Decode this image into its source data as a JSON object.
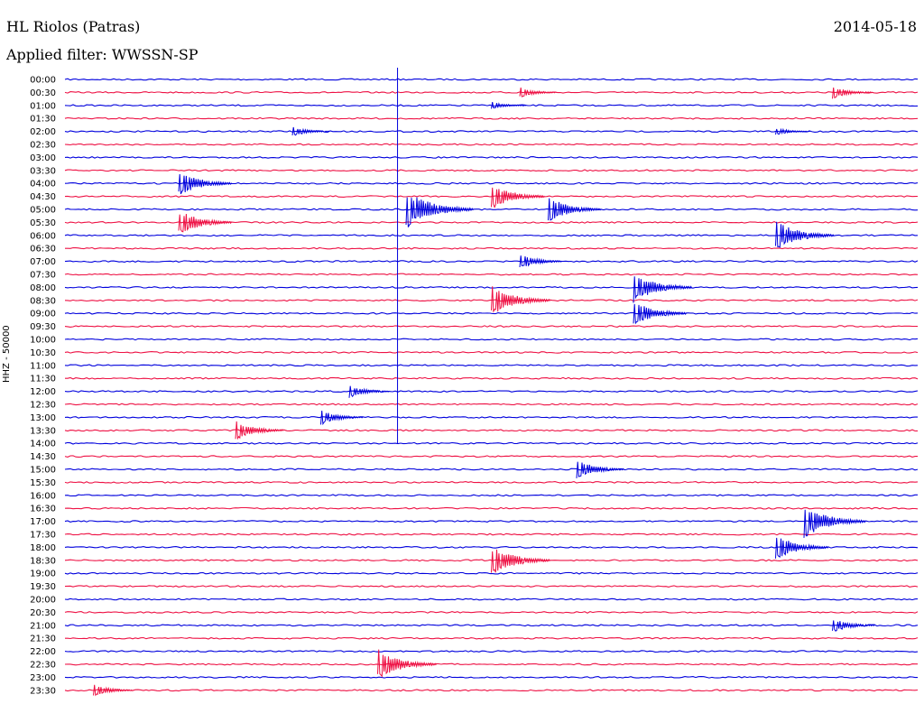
{
  "header": {
    "station": "HL Riolos (Patras)",
    "date": "2014-05-18",
    "filter": "Applied filter: WWSSN-SP"
  },
  "colors": {
    "trace_a": "#0000dd",
    "trace_b": "#ee1144",
    "axis": "#000000"
  },
  "chart_data": {
    "type": "line",
    "title": "HL Riolos (Patras)",
    "subtitle": "Applied filter: WWSSN-SP",
    "date": "2014-05-18",
    "ylabel": "HHZ - 50000",
    "xlabel": "",
    "row_labels": [
      "00:00",
      "00:30",
      "01:00",
      "01:30",
      "02:00",
      "02:30",
      "03:00",
      "03:30",
      "04:00",
      "04:30",
      "05:00",
      "05:30",
      "06:00",
      "06:30",
      "07:00",
      "07:30",
      "08:00",
      "08:30",
      "09:00",
      "09:30",
      "10:00",
      "10:30",
      "11:00",
      "11:30",
      "12:00",
      "12:30",
      "13:00",
      "13:30",
      "14:00",
      "14:30",
      "15:00",
      "15:30",
      "16:00",
      "16:30",
      "17:00",
      "17:30",
      "18:00",
      "18:30",
      "19:00",
      "19:30",
      "20:00",
      "20:30",
      "21:00",
      "21:30",
      "22:00",
      "22:30",
      "23:00",
      "23:30"
    ],
    "row_minutes": 30,
    "series_colors_alternating": [
      "blue",
      "red"
    ],
    "events": [
      {
        "row": "00:30",
        "minute": 16,
        "amplitude": 0.4
      },
      {
        "row": "00:30",
        "minute": 27,
        "amplitude": 0.5
      },
      {
        "row": "01:00",
        "minute": 15,
        "amplitude": 0.3
      },
      {
        "row": "02:00",
        "minute": 8,
        "amplitude": 0.4
      },
      {
        "row": "02:00",
        "minute": 25,
        "amplitude": 0.3
      },
      {
        "row": "04:00",
        "minute": 4,
        "amplitude": 1.0
      },
      {
        "row": "04:30",
        "minute": 15,
        "amplitude": 1.0
      },
      {
        "row": "05:00",
        "minute": 12,
        "amplitude": 1.5
      },
      {
        "row": "05:00",
        "minute": 17,
        "amplitude": 1.0
      },
      {
        "row": "05:30",
        "minute": 4,
        "amplitude": 1.0
      },
      {
        "row": "06:00",
        "minute": 25,
        "amplitude": 1.2
      },
      {
        "row": "07:00",
        "minute": 16,
        "amplitude": 0.6
      },
      {
        "row": "08:00",
        "minute": 20,
        "amplitude": 1.2
      },
      {
        "row": "08:30",
        "minute": 15,
        "amplitude": 1.2
      },
      {
        "row": "09:00",
        "minute": 20,
        "amplitude": 1.0
      },
      {
        "row": "12:00",
        "minute": 10,
        "amplitude": 0.5
      },
      {
        "row": "13:00",
        "minute": 9,
        "amplitude": 0.6
      },
      {
        "row": "13:30",
        "minute": 6,
        "amplitude": 0.8
      },
      {
        "row": "15:00",
        "minute": 18,
        "amplitude": 0.8
      },
      {
        "row": "17:00",
        "minute": 26,
        "amplitude": 1.3
      },
      {
        "row": "18:00",
        "minute": 25,
        "amplitude": 1.0
      },
      {
        "row": "18:30",
        "minute": 15,
        "amplitude": 1.2
      },
      {
        "row": "21:00",
        "minute": 27,
        "amplitude": 0.6
      },
      {
        "row": "22:30",
        "minute": 11,
        "amplitude": 1.2
      },
      {
        "row": "23:30",
        "minute": 1,
        "amplitude": 0.5
      }
    ]
  }
}
